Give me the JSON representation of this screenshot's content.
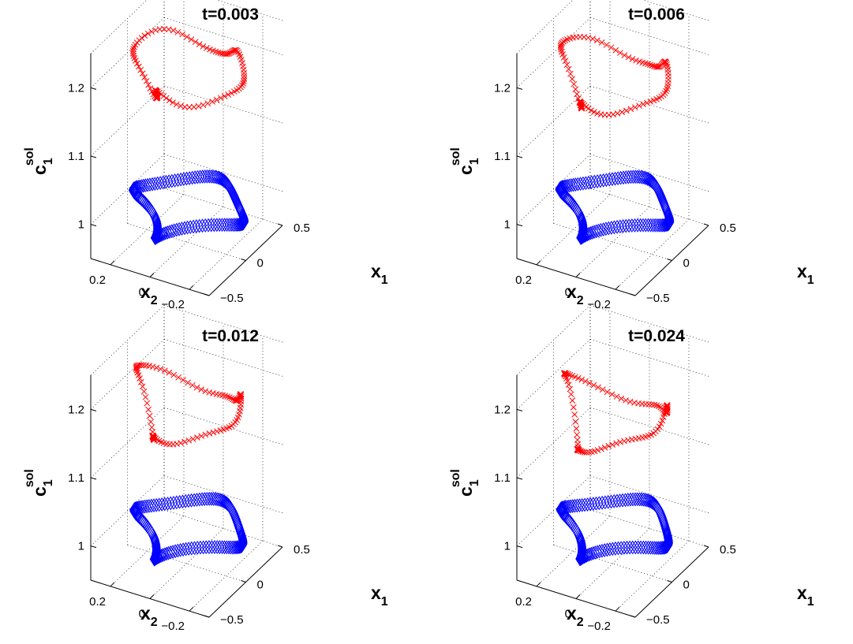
{
  "chart_data": [
    {
      "type": "scatter",
      "title": "t=0.003",
      "xlabel": "x",
      "xlabel_sub": "1",
      "ylabel": "x",
      "ylabel_sub": "2",
      "zlabel": "c",
      "zlabel_sub": "1",
      "zlabel_sup": "sol",
      "xlim": [
        -0.5,
        0.5
      ],
      "ylim": [
        -0.3,
        0.3
      ],
      "zlim": [
        0.95,
        1.25
      ],
      "x_ticks": [
        -0.5,
        0,
        0.5
      ],
      "x_tick_labels": [
        "−0.5",
        "0",
        "0.5"
      ],
      "y_ticks": [
        -0.2,
        0,
        0.2
      ],
      "y_tick_labels": [
        "−0.2",
        "0",
        "0.2"
      ],
      "z_ticks": [
        1,
        1.1,
        1.2
      ],
      "z_tick_labels": [
        "1",
        "1.1",
        "1.2"
      ],
      "grid": true,
      "series": [
        {
          "marker": "x",
          "color": "#ff0000",
          "z_level": 1.2,
          "shape_offset": 0.0
        },
        {
          "marker": "diamond",
          "color": "#0000ff",
          "z_level": 1.0,
          "shape_offset": 0.0
        }
      ]
    },
    {
      "type": "scatter",
      "title": "t=0.006",
      "xlabel": "x",
      "xlabel_sub": "1",
      "ylabel": "x",
      "ylabel_sub": "2",
      "zlabel": "c",
      "zlabel_sub": "1",
      "zlabel_sup": "sol",
      "xlim": [
        -0.5,
        0.5
      ],
      "ylim": [
        -0.3,
        0.3
      ],
      "zlim": [
        0.95,
        1.25
      ],
      "x_ticks": [
        -0.5,
        0,
        0.5
      ],
      "x_tick_labels": [
        "−0.5",
        "0",
        "0.5"
      ],
      "y_ticks": [
        -0.2,
        0,
        0.2
      ],
      "y_tick_labels": [
        "−0.2",
        "0",
        "0.2"
      ],
      "z_ticks": [
        1,
        1.1,
        1.2
      ],
      "z_tick_labels": [
        "1",
        "1.1",
        "1.2"
      ],
      "grid": true,
      "series": [
        {
          "marker": "x",
          "color": "#ff0000",
          "z_level": 1.19,
          "shape_offset": 0.35
        },
        {
          "marker": "diamond",
          "color": "#0000ff",
          "z_level": 1.0,
          "shape_offset": 0.1
        }
      ]
    },
    {
      "type": "scatter",
      "title": "t=0.012",
      "xlabel": "x",
      "xlabel_sub": "1",
      "ylabel": "x",
      "ylabel_sub": "2",
      "zlabel": "c",
      "zlabel_sub": "1",
      "zlabel_sup": "sol",
      "xlim": [
        -0.5,
        0.5
      ],
      "ylim": [
        -0.3,
        0.3
      ],
      "zlim": [
        0.95,
        1.25
      ],
      "x_ticks": [
        -0.5,
        0,
        0.5
      ],
      "x_tick_labels": [
        "−0.5",
        "0",
        "0.5"
      ],
      "y_ticks": [
        -0.2,
        0,
        0.2
      ],
      "y_tick_labels": [
        "−0.2",
        "0",
        "0.2"
      ],
      "z_ticks": [
        1,
        1.1,
        1.2
      ],
      "z_tick_labels": [
        "1",
        "1.1",
        "1.2"
      ],
      "grid": true,
      "series": [
        {
          "marker": "x",
          "color": "#ff0000",
          "z_level": 1.18,
          "shape_offset": 0.7
        },
        {
          "marker": "diamond",
          "color": "#0000ff",
          "z_level": 1.0,
          "shape_offset": 0.2
        }
      ]
    },
    {
      "type": "scatter",
      "title": "t=0.024",
      "xlabel": "x",
      "xlabel_sub": "1",
      "ylabel": "x",
      "ylabel_sub": "2",
      "zlabel": "c",
      "zlabel_sub": "1",
      "zlabel_sup": "sol",
      "xlim": [
        -0.5,
        0.5
      ],
      "ylim": [
        -0.3,
        0.3
      ],
      "zlim": [
        0.95,
        1.25
      ],
      "x_ticks": [
        -0.5,
        0,
        0.5
      ],
      "x_tick_labels": [
        "−0.5",
        "0",
        "0.5"
      ],
      "y_ticks": [
        -0.2,
        0,
        0.2
      ],
      "y_tick_labels": [
        "−0.2",
        "0",
        "0.2"
      ],
      "z_ticks": [
        1,
        1.1,
        1.2
      ],
      "z_tick_labels": [
        "1",
        "1.1",
        "1.2"
      ],
      "grid": true,
      "series": [
        {
          "marker": "x",
          "color": "#ff0000",
          "z_level": 1.17,
          "shape_offset": 1.1
        },
        {
          "marker": "diamond",
          "color": "#0000ff",
          "z_level": 1.0,
          "shape_offset": 0.3
        }
      ]
    }
  ]
}
